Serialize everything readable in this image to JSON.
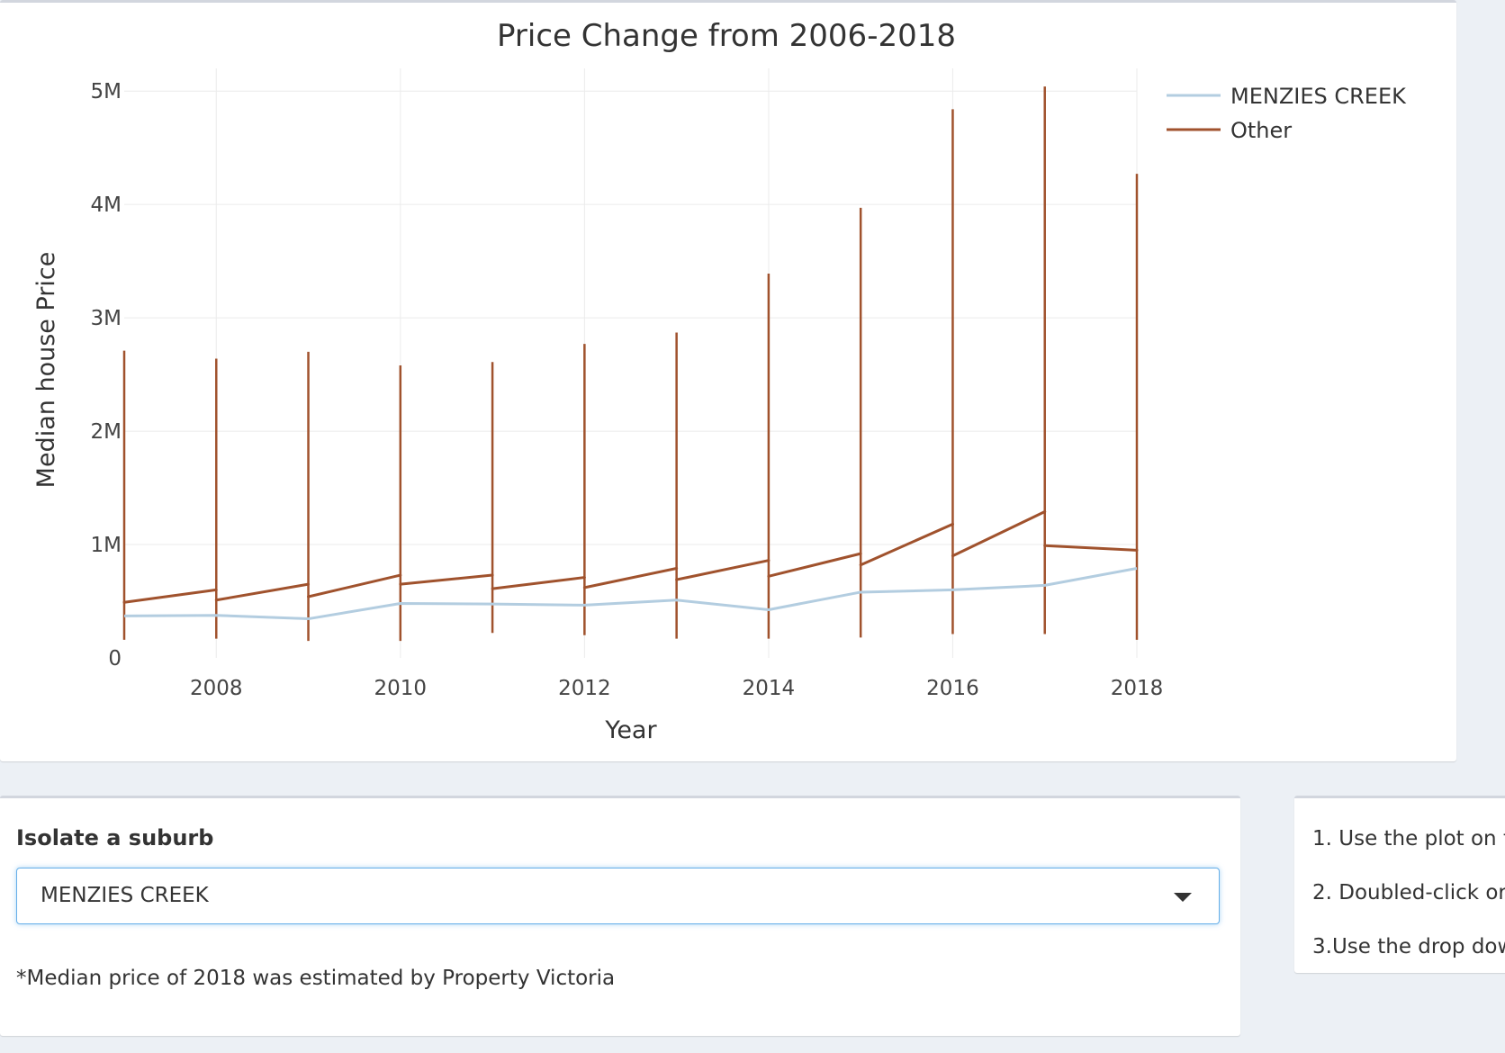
{
  "chart_data": {
    "type": "line",
    "title": "Price Change from 2006-2018",
    "xlabel": "Year",
    "ylabel": "Median house Price",
    "x_ticks": [
      "2008",
      "2010",
      "2012",
      "2014",
      "2016",
      "2018"
    ],
    "y_ticks": [
      "0",
      "1M",
      "2M",
      "3M",
      "4M",
      "5M"
    ],
    "xlim": [
      2007,
      2018
    ],
    "ylim": [
      0,
      5200000
    ],
    "grid": true,
    "legend_position": "top-right",
    "series": [
      {
        "name": "MENZIES CREEK",
        "color": "#b3cde0",
        "x": [
          2007,
          2008,
          2009,
          2010,
          2011,
          2012,
          2013,
          2014,
          2015,
          2016,
          2017,
          2018
        ],
        "y": [
          370000,
          375000,
          345000,
          480000,
          475000,
          465000,
          510000,
          425000,
          580000,
          600000,
          640000,
          790000
        ]
      },
      {
        "name": "Other",
        "color": "#a0522d",
        "segments": [
          {
            "x": [
              2007,
              2008
            ],
            "y": [
              490000,
              600000
            ]
          },
          {
            "x": [
              2008,
              2009
            ],
            "y": [
              510000,
              650000
            ]
          },
          {
            "x": [
              2009,
              2010
            ],
            "y": [
              540000,
              730000
            ]
          },
          {
            "x": [
              2010,
              2011
            ],
            "y": [
              650000,
              730000
            ]
          },
          {
            "x": [
              2011,
              2012
            ],
            "y": [
              610000,
              710000
            ]
          },
          {
            "x": [
              2012,
              2013
            ],
            "y": [
              620000,
              790000
            ]
          },
          {
            "x": [
              2013,
              2014
            ],
            "y": [
              690000,
              860000
            ]
          },
          {
            "x": [
              2014,
              2015
            ],
            "y": [
              720000,
              920000
            ]
          },
          {
            "x": [
              2015,
              2016
            ],
            "y": [
              820000,
              1180000
            ]
          },
          {
            "x": [
              2016,
              2017
            ],
            "y": [
              900000,
              1290000
            ]
          },
          {
            "x": [
              2017,
              2018
            ],
            "y": [
              990000,
              950000
            ]
          }
        ],
        "ranges": [
          {
            "x": 2007,
            "min": 160000,
            "max": 2710000
          },
          {
            "x": 2008,
            "min": 170000,
            "max": 2640000
          },
          {
            "x": 2009,
            "min": 150000,
            "max": 2700000
          },
          {
            "x": 2010,
            "min": 150000,
            "max": 2580000
          },
          {
            "x": 2011,
            "min": 220000,
            "max": 2610000
          },
          {
            "x": 2012,
            "min": 200000,
            "max": 2770000
          },
          {
            "x": 2013,
            "min": 170000,
            "max": 2870000
          },
          {
            "x": 2014,
            "min": 170000,
            "max": 3390000
          },
          {
            "x": 2015,
            "min": 180000,
            "max": 3970000
          },
          {
            "x": 2016,
            "min": 210000,
            "max": 4840000
          },
          {
            "x": 2017,
            "min": 210000,
            "max": 5040000
          },
          {
            "x": 2018,
            "min": 160000,
            "max": 4270000
          }
        ]
      }
    ]
  },
  "controls": {
    "title": "Isolate a suburb",
    "selected": "MENZIES CREEK",
    "note": "*Median price of 2018 was estimated by Property Victoria"
  },
  "info": {
    "items": [
      "1. Use the plot on t",
      "2. Doubled-click or",
      "3.Use the drop dow"
    ]
  }
}
